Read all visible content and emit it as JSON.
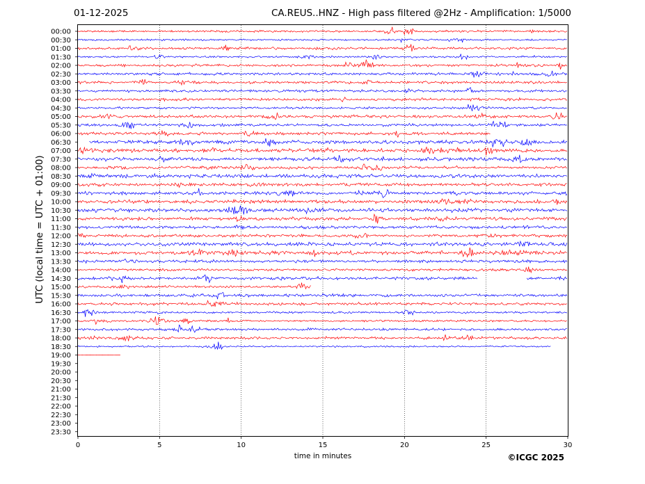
{
  "header": {
    "date": "01-12-2025",
    "title": "CA.REUS..HNZ - High pass filtered @2Hz - Amplification: 1/5000"
  },
  "copyright": "©ICGC 2025",
  "chart_data": {
    "type": "line",
    "ylabel": "UTC (local time = UTC + 01:00)",
    "xlabel": "time in minutes",
    "xlim": [
      0,
      30
    ],
    "x_ticks": [
      "0",
      "5",
      "10",
      "15",
      "20",
      "25",
      "30"
    ],
    "y_ticks": [
      "00:00",
      "00:30",
      "01:00",
      "01:30",
      "02:00",
      "02:30",
      "03:00",
      "03:30",
      "04:00",
      "04:30",
      "05:00",
      "05:30",
      "06:00",
      "06:30",
      "07:00",
      "07:30",
      "08:00",
      "08:30",
      "09:00",
      "09:30",
      "10:00",
      "10:30",
      "11:00",
      "11:30",
      "12:00",
      "12:30",
      "13:00",
      "13:30",
      "14:00",
      "14:30",
      "15:00",
      "15:30",
      "16:00",
      "16:30",
      "17:00",
      "17:30",
      "18:00",
      "18:30",
      "19:00",
      "19:30",
      "20:00",
      "20:30",
      "21:00",
      "21:30",
      "22:00",
      "22:30",
      "23:00",
      "23:30"
    ],
    "vertical_grid": "dotted",
    "trace_colors": [
      "#ff0000",
      "#0000ff"
    ],
    "last_trace": {
      "label": "19:00",
      "end_minute": 2.6
    },
    "gaps": [
      {
        "trace": "06:00",
        "from_minute": 25.3,
        "to_minute": 30
      },
      {
        "trace": "06:30",
        "from_minute": 0,
        "to_minute": 0.7
      },
      {
        "trace": "14:30",
        "from_minute": 24.5,
        "to_minute": 27.5
      },
      {
        "trace": "15:00",
        "from_minute": 14.3,
        "to_minute": 30
      },
      {
        "trace": "18:30",
        "from_minute": 29.0,
        "to_minute": 30
      }
    ]
  }
}
